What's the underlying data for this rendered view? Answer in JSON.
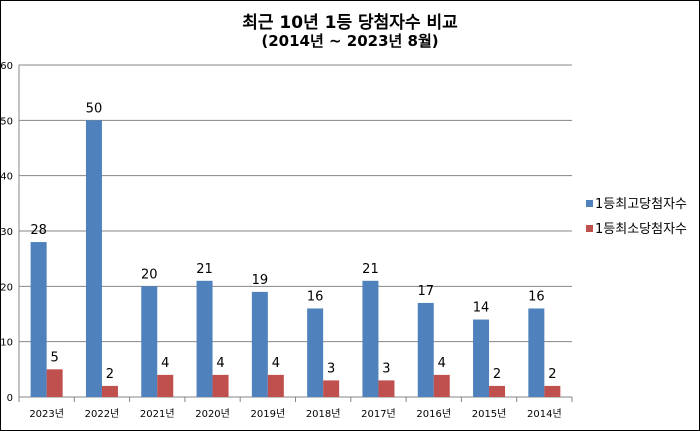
{
  "chart_data": {
    "type": "bar",
    "title": "최근 10년 1등 당첨자수 비교",
    "subtitle": "(2014년 ~ 2023년 8월)",
    "categories": [
      "2023년",
      "2022년",
      "2021년",
      "2020년",
      "2019년",
      "2018년",
      "2017년",
      "2016년",
      "2015년",
      "2014년"
    ],
    "series": [
      {
        "name": "1등최고당첨자수",
        "values": [
          28,
          50,
          20,
          21,
          19,
          16,
          21,
          17,
          14,
          16
        ],
        "color": "#4f81bd"
      },
      {
        "name": "1등최소당첨자수",
        "values": [
          5,
          2,
          4,
          4,
          4,
          3,
          3,
          4,
          2,
          2
        ],
        "color": "#c0504d"
      }
    ],
    "ylim": [
      0,
      60
    ],
    "yticks": [
      0,
      10,
      20,
      30,
      40,
      50,
      60
    ],
    "grid": true,
    "legend": "right",
    "data_labels": true
  }
}
